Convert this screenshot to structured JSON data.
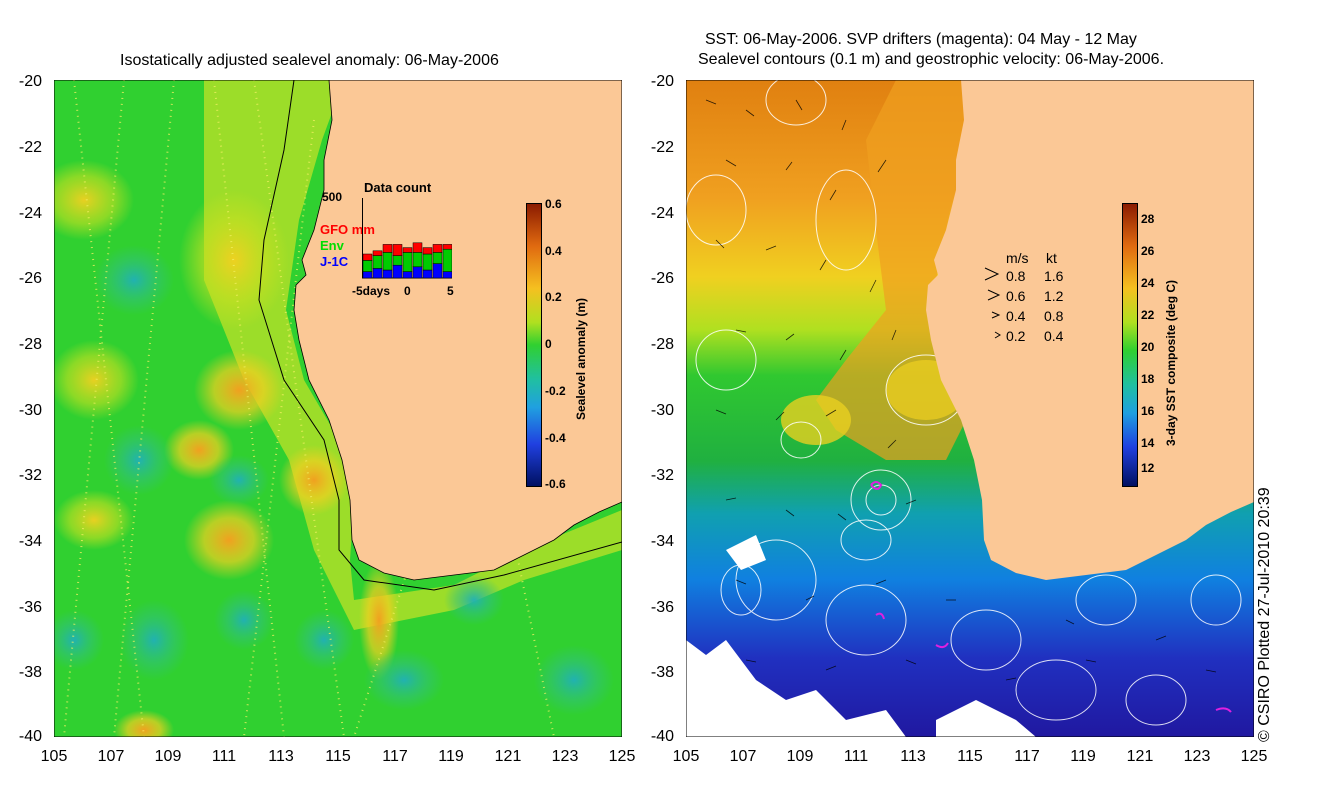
{
  "left_panel": {
    "title": "Isostatically adjusted sealevel anomaly: 06-May-2006",
    "y_ticks": [
      "-20",
      "-22",
      "-24",
      "-26",
      "-28",
      "-30",
      "-32",
      "-34",
      "-36",
      "-38",
      "-40"
    ],
    "x_ticks": [
      "105",
      "107",
      "109",
      "111",
      "113",
      "115",
      "117",
      "119",
      "121",
      "123",
      "125"
    ],
    "colorbar": {
      "label": "Sealevel anomaly (m)",
      "ticks": [
        "0.6",
        "0.4",
        "0.2",
        "0",
        "-0.2",
        "-0.4",
        "-0.6"
      ]
    },
    "data_count": {
      "title": "Data count",
      "ymax": "500",
      "legend": [
        "GFO mm",
        "Env",
        "J-1C"
      ],
      "x_labels": [
        "-5days",
        "0",
        "5"
      ],
      "legend_colors": [
        "#ff0000",
        "#00cc00",
        "#0000ff"
      ],
      "bars": [
        {
          "j1c": 40,
          "env": 70,
          "gfo": 40
        },
        {
          "j1c": 60,
          "env": 80,
          "gfo": 30
        },
        {
          "j1c": 50,
          "env": 110,
          "gfo": 50
        },
        {
          "j1c": 80,
          "env": 60,
          "gfo": 70
        },
        {
          "j1c": 40,
          "env": 120,
          "gfo": 30
        },
        {
          "j1c": 70,
          "env": 90,
          "gfo": 60
        },
        {
          "j1c": 50,
          "env": 100,
          "gfo": 40
        },
        {
          "j1c": 90,
          "env": 70,
          "gfo": 50
        },
        {
          "j1c": 40,
          "env": 140,
          "gfo": 30
        }
      ]
    }
  },
  "right_panel": {
    "title_line1": "SST: 06-May-2006. SVP drifters (magenta): 04 May - 12 May",
    "title_line2": "Sealevel contours (0.1 m) and geostrophic velocity: 06-May-2006.",
    "y_ticks": [
      "-20",
      "-22",
      "-24",
      "-26",
      "-28",
      "-30",
      "-32",
      "-34",
      "-36",
      "-38",
      "-40"
    ],
    "x_ticks": [
      "105",
      "107",
      "109",
      "111",
      "113",
      "115",
      "117",
      "119",
      "121",
      "123",
      "125"
    ],
    "colorbar": {
      "label": "3-day SST composite (deg C)",
      "ticks": [
        "28",
        "26",
        "24",
        "22",
        "20",
        "18",
        "16",
        "14",
        "12"
      ]
    },
    "velocity_legend": {
      "header_ms": "m/s",
      "header_kt": "kt",
      "rows": [
        {
          "ms": "0.8",
          "kt": "1.6"
        },
        {
          "ms": "0.6",
          "kt": "1.2"
        },
        {
          "ms": "0.4",
          "kt": "0.8"
        },
        {
          "ms": "0.2",
          "kt": "0.4"
        }
      ]
    }
  },
  "credit": "© CSIRO Plotted 27-Jul-2010 20:39"
}
